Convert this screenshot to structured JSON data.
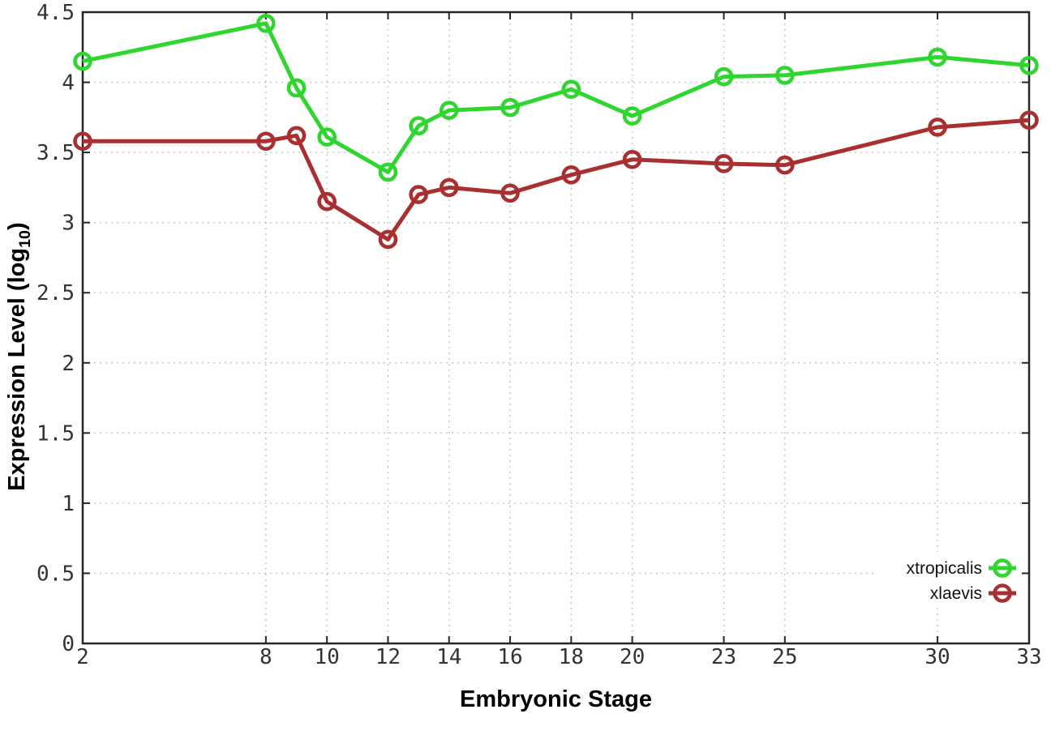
{
  "figure": {
    "background": "#ffffff",
    "border_color": "#262626",
    "grid_color": "#c3c3c3",
    "tick_label_color": "#333333",
    "legend_text_color": "#111111"
  },
  "chart_data": {
    "type": "line",
    "title": "",
    "xlabel": "Embryonic Stage",
    "ylabel": "Expression Level (log10)",
    "ylabel_rich": {
      "main": "Expression Level (log",
      "sub": "10",
      "end": ")"
    },
    "xlim": [
      2,
      33
    ],
    "ylim": [
      0,
      4.5
    ],
    "xticks": [
      2,
      8,
      10,
      12,
      14,
      16,
      18,
      20,
      23,
      25,
      30,
      33
    ],
    "xtick_labels": [
      "2",
      "8",
      "10",
      "12",
      "14",
      "16",
      "18",
      "20",
      "23",
      "25",
      "30",
      "33"
    ],
    "yticks": [
      0,
      0.5,
      1,
      1.5,
      2,
      2.5,
      3,
      3.5,
      4,
      4.5
    ],
    "ytick_labels": [
      "0",
      "0.5",
      "1",
      "1.5",
      "2",
      "2.5",
      "3",
      "3.5",
      "4",
      "4.5"
    ],
    "grid": true,
    "grid_style": "dotted",
    "legend_position": "inside-bottom-right",
    "marker": "open-circle",
    "x": [
      2,
      8,
      9,
      10,
      12,
      13,
      14,
      16,
      18,
      20,
      23,
      25,
      30,
      33
    ],
    "series": [
      {
        "name": "xtropicalis",
        "color": "#30d530",
        "values": [
          4.15,
          4.42,
          3.96,
          3.61,
          3.36,
          3.69,
          3.8,
          3.82,
          3.95,
          3.76,
          4.04,
          4.05,
          4.18,
          4.12
        ]
      },
      {
        "name": "xlaevis",
        "color": "#a93030",
        "values": [
          3.58,
          3.58,
          3.62,
          3.15,
          2.88,
          3.2,
          3.25,
          3.21,
          3.34,
          3.45,
          3.42,
          3.41,
          3.68,
          3.73
        ]
      }
    ]
  }
}
